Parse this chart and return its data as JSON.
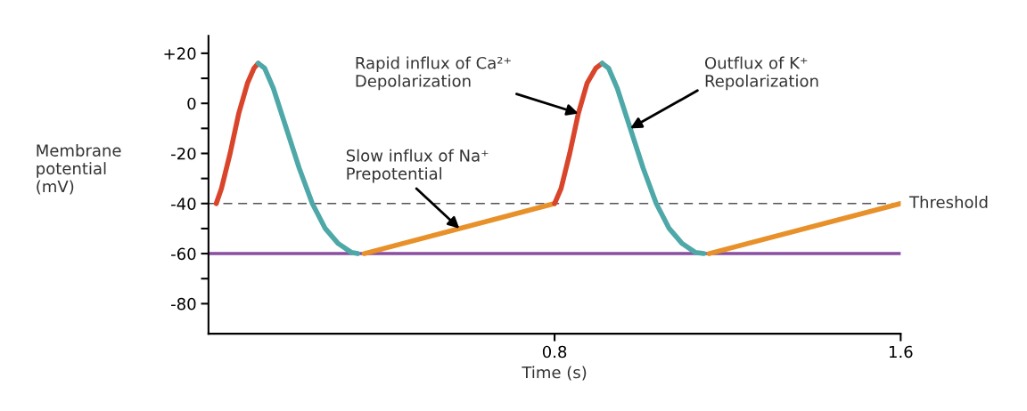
{
  "chart_data": {
    "type": "line",
    "xlabel": "Time (s)",
    "ylabel": "Membrane\npotential\n(mV)",
    "xlim": [
      0,
      1.6
    ],
    "xticks": [
      0.8,
      1.6
    ],
    "ylim": [
      -92,
      27
    ],
    "yticks": [
      {
        "value": 20,
        "label": "+20"
      },
      {
        "value": 10,
        "label": null
      },
      0,
      {
        "value": -10,
        "label": null
      },
      -20,
      {
        "value": -30,
        "label": null
      },
      -40,
      {
        "value": -50,
        "label": null
      },
      -60,
      {
        "value": -70,
        "label": null
      },
      -80
    ],
    "grid": false,
    "legend": false,
    "marker": "none",
    "line_style": "solid",
    "series": [
      {
        "color": "#d9452b",
        "x": [
          0.018,
          0.03,
          0.05,
          0.07,
          0.09,
          0.105,
          0.115
        ],
        "values": [
          -40,
          -34,
          -20,
          -4,
          8,
          14,
          16
        ]
      },
      {
        "color": "#4fa8a8",
        "x": [
          0.115,
          0.13,
          0.15,
          0.18,
          0.21,
          0.24,
          0.27,
          0.3,
          0.33,
          0.345
        ],
        "values": [
          16,
          14,
          6,
          -10,
          -26,
          -40,
          -50,
          -56,
          -59.5,
          -60
        ]
      },
      {
        "color": "#e8902a",
        "x": [
          0.36,
          0.8
        ],
        "values": [
          -60,
          -40
        ]
      },
      {
        "color": "#d9452b",
        "x": [
          0.8,
          0.815,
          0.835,
          0.855,
          0.875,
          0.895,
          0.91
        ],
        "values": [
          -40,
          -34,
          -20,
          -4,
          8,
          14,
          16
        ]
      },
      {
        "color": "#4fa8a8",
        "x": [
          0.91,
          0.925,
          0.945,
          0.975,
          1.005,
          1.035,
          1.065,
          1.095,
          1.125,
          1.145
        ],
        "values": [
          16,
          14,
          6,
          -10,
          -26,
          -40,
          -50,
          -56,
          -59.5,
          -60
        ]
      },
      {
        "color": "#e8902a",
        "x": [
          1.157,
          1.6
        ],
        "values": [
          -60,
          -40
        ]
      }
    ],
    "ref_lines": [
      {
        "axis": "y",
        "value": -40,
        "label": "Threshold",
        "color": "#555555",
        "line_style": "dashed"
      },
      {
        "axis": "y",
        "value": -60,
        "color": "#8a4fa0",
        "line_style": "solid"
      }
    ],
    "annotations": [
      {
        "text": "Slow influx of Na⁺\nPrepotential",
        "x": 0.58,
        "y": -50
      },
      {
        "text": "Rapid influx of Ca²⁺\nDepolarization",
        "x": 0.855,
        "y": -4
      },
      {
        "text": "Outflux of K⁺\nRepolarization",
        "x": 0.975,
        "y": -10
      }
    ]
  }
}
